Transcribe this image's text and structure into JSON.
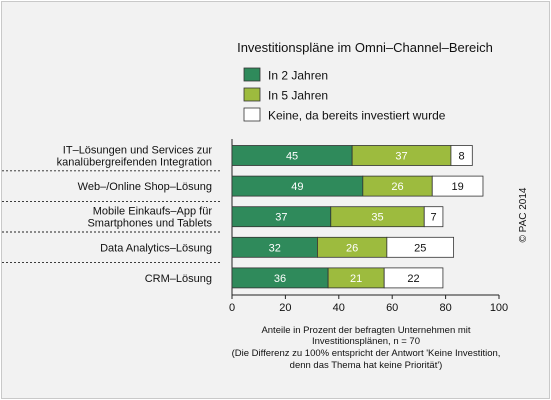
{
  "chart_data": {
    "type": "bar",
    "orientation": "horizontal",
    "stacked": true,
    "title": "Investitionspläne im Omni–Channel–Bereich",
    "categories": [
      [
        "IT–Lösungen und Services zur",
        "kanalübergreifenden Integration"
      ],
      [
        "Web–/Online Shop–Lösung"
      ],
      [
        "Mobile Einkaufs–App für",
        "Smartphones und Tablets"
      ],
      [
        "Data Analytics–Lösung"
      ],
      [
        "CRM–Lösung"
      ]
    ],
    "series": [
      {
        "name": "In 2 Jahren",
        "values": [
          45,
          49,
          37,
          32,
          36
        ],
        "color": "#2f8a5b",
        "label_color": "#ffffff"
      },
      {
        "name": "In 5 Jahren",
        "values": [
          37,
          26,
          35,
          26,
          21
        ],
        "color": "#9dbb3e",
        "label_color": "#ffffff"
      },
      {
        "name": "Keine, da bereits investiert wurde",
        "values": [
          8,
          19,
          7,
          25,
          22
        ],
        "color": "#ffffff",
        "label_color": "#111111"
      }
    ],
    "xlim": [
      0,
      100
    ],
    "xticks": [
      0,
      20,
      40,
      60,
      80,
      100
    ],
    "legend_position": "top",
    "footnote": [
      "Anteile in Prozent der befragten Unternehmen mit",
      "Investitionsplänen, n = 70",
      "(Die Differenz zu 100% entspricht der Antwort 'Keine Investition,",
      "denn das Thema hat keine Priorität')"
    ],
    "copyright": "© PAC 2014"
  }
}
